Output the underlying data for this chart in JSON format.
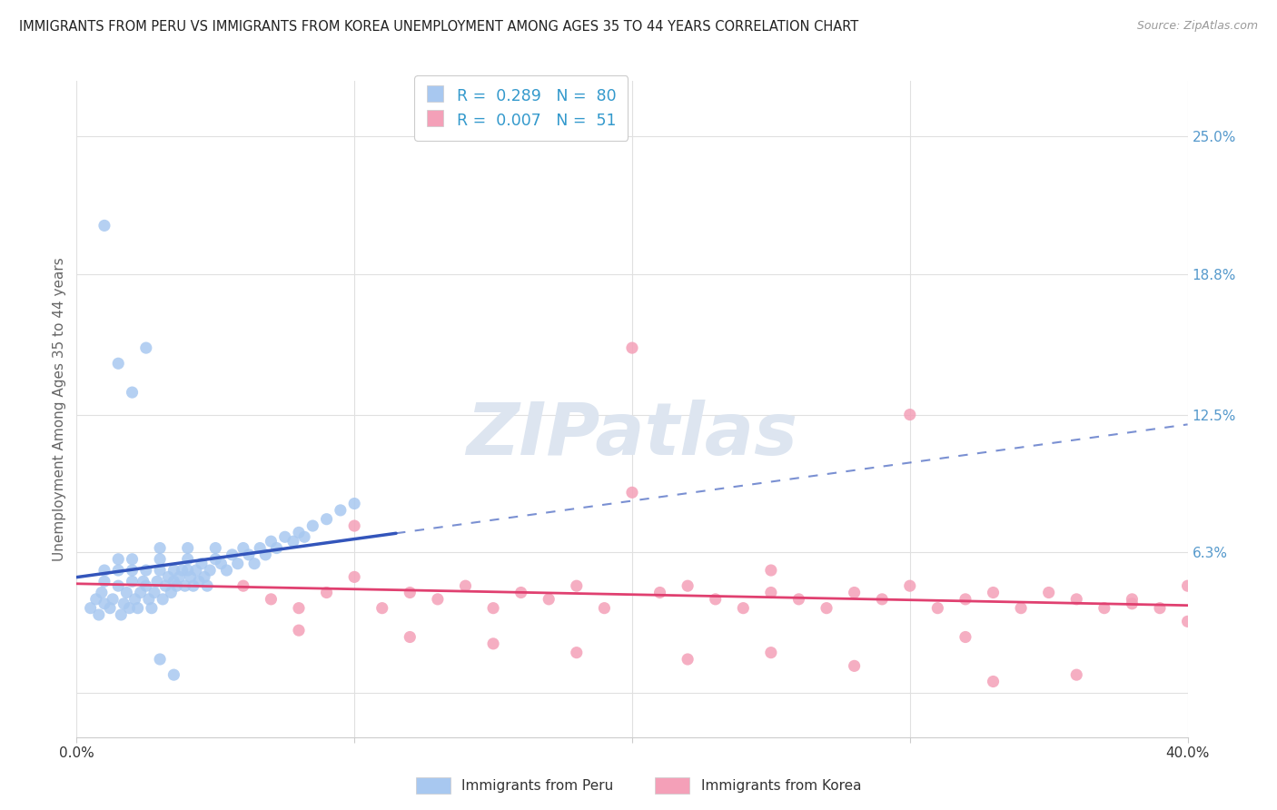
{
  "title": "IMMIGRANTS FROM PERU VS IMMIGRANTS FROM KOREA UNEMPLOYMENT AMONG AGES 35 TO 44 YEARS CORRELATION CHART",
  "source": "Source: ZipAtlas.com",
  "ylabel": "Unemployment Among Ages 35 to 44 years",
  "xlim": [
    0.0,
    0.4
  ],
  "ylim": [
    -0.02,
    0.275
  ],
  "yticks": [
    0.0,
    0.063,
    0.125,
    0.188,
    0.25
  ],
  "ytick_labels": [
    "",
    "6.3%",
    "12.5%",
    "18.8%",
    "25.0%"
  ],
  "xtick_positions": [
    0.0,
    0.1,
    0.2,
    0.3,
    0.4
  ],
  "xtick_labels": [
    "0.0%",
    "",
    "",
    "",
    "40.0%"
  ],
  "grid_color": "#e0e0e0",
  "peru_R": 0.289,
  "peru_N": 80,
  "korea_R": 0.007,
  "korea_N": 51,
  "peru_color": "#a8c8f0",
  "korea_color": "#f4a0b8",
  "peru_line_color": "#3355bb",
  "korea_line_color": "#e04070",
  "watermark_color": "#dde5f0",
  "watermark_text": "ZIPatlas",
  "peru_x": [
    0.005,
    0.007,
    0.008,
    0.009,
    0.01,
    0.01,
    0.01,
    0.012,
    0.013,
    0.015,
    0.015,
    0.015,
    0.016,
    0.017,
    0.018,
    0.019,
    0.02,
    0.02,
    0.02,
    0.021,
    0.022,
    0.023,
    0.024,
    0.025,
    0.025,
    0.026,
    0.027,
    0.028,
    0.029,
    0.03,
    0.03,
    0.03,
    0.031,
    0.032,
    0.033,
    0.034,
    0.035,
    0.035,
    0.036,
    0.037,
    0.038,
    0.039,
    0.04,
    0.04,
    0.04,
    0.041,
    0.042,
    0.043,
    0.044,
    0.045,
    0.046,
    0.047,
    0.048,
    0.05,
    0.05,
    0.052,
    0.054,
    0.056,
    0.058,
    0.06,
    0.062,
    0.064,
    0.066,
    0.068,
    0.07,
    0.072,
    0.075,
    0.078,
    0.08,
    0.082,
    0.085,
    0.09,
    0.095,
    0.1,
    0.01,
    0.025,
    0.015,
    0.02,
    0.03,
    0.035
  ],
  "peru_y": [
    0.038,
    0.042,
    0.035,
    0.045,
    0.04,
    0.05,
    0.055,
    0.038,
    0.042,
    0.048,
    0.055,
    0.06,
    0.035,
    0.04,
    0.045,
    0.038,
    0.05,
    0.055,
    0.06,
    0.042,
    0.038,
    0.045,
    0.05,
    0.055,
    0.048,
    0.042,
    0.038,
    0.045,
    0.05,
    0.055,
    0.06,
    0.065,
    0.042,
    0.048,
    0.052,
    0.045,
    0.05,
    0.055,
    0.048,
    0.052,
    0.055,
    0.048,
    0.055,
    0.06,
    0.065,
    0.052,
    0.048,
    0.055,
    0.05,
    0.058,
    0.052,
    0.048,
    0.055,
    0.06,
    0.065,
    0.058,
    0.055,
    0.062,
    0.058,
    0.065,
    0.062,
    0.058,
    0.065,
    0.062,
    0.068,
    0.065,
    0.07,
    0.068,
    0.072,
    0.07,
    0.075,
    0.078,
    0.082,
    0.085,
    0.21,
    0.155,
    0.148,
    0.135,
    0.015,
    0.008
  ],
  "korea_x": [
    0.06,
    0.07,
    0.08,
    0.09,
    0.1,
    0.11,
    0.12,
    0.13,
    0.14,
    0.15,
    0.16,
    0.17,
    0.18,
    0.19,
    0.2,
    0.21,
    0.22,
    0.23,
    0.24,
    0.25,
    0.26,
    0.27,
    0.28,
    0.29,
    0.3,
    0.31,
    0.32,
    0.33,
    0.34,
    0.35,
    0.36,
    0.37,
    0.38,
    0.39,
    0.4,
    0.08,
    0.12,
    0.15,
    0.18,
    0.22,
    0.25,
    0.28,
    0.32,
    0.36,
    0.4,
    0.1,
    0.2,
    0.3,
    0.38,
    0.25,
    0.33
  ],
  "korea_y": [
    0.048,
    0.042,
    0.038,
    0.045,
    0.052,
    0.038,
    0.045,
    0.042,
    0.048,
    0.038,
    0.045,
    0.042,
    0.048,
    0.038,
    0.09,
    0.045,
    0.048,
    0.042,
    0.038,
    0.045,
    0.042,
    0.038,
    0.045,
    0.042,
    0.048,
    0.038,
    0.042,
    0.045,
    0.038,
    0.045,
    0.042,
    0.038,
    0.042,
    0.038,
    0.048,
    0.028,
    0.025,
    0.022,
    0.018,
    0.015,
    0.055,
    0.012,
    0.025,
    0.008,
    0.032,
    0.075,
    0.155,
    0.125,
    0.04,
    0.018,
    0.005
  ]
}
